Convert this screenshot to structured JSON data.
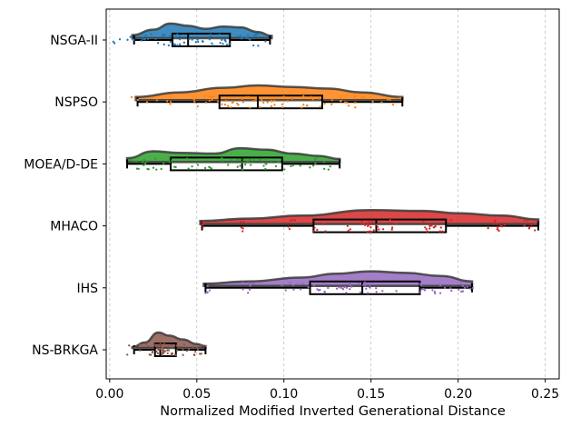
{
  "chart_data": {
    "type": "raincloud",
    "title": "",
    "xlabel": "Normalized Modified Inverted Generational Distance",
    "ylabel": "",
    "xlim": [
      -0.002,
      0.258
    ],
    "xticks": [
      0.0,
      0.05,
      0.1,
      0.15,
      0.2,
      0.25
    ],
    "xtick_labels": [
      "0.00",
      "0.05",
      "0.10",
      "0.15",
      "0.20",
      "0.25"
    ],
    "grid": "vertical dashed",
    "legend": "none",
    "series": [
      {
        "name": "NSGA-II",
        "color": "#1f77b4",
        "box": {
          "whisker_low": 0.014,
          "q1": 0.036,
          "median": 0.045,
          "q3": 0.069,
          "whisker_high": 0.092
        },
        "density": [
          [
            0.013,
            0.2
          ],
          [
            0.025,
            0.55
          ],
          [
            0.035,
            0.95
          ],
          [
            0.045,
            0.8
          ],
          [
            0.055,
            0.6
          ],
          [
            0.065,
            0.75
          ],
          [
            0.075,
            0.7
          ],
          [
            0.085,
            0.4
          ],
          [
            0.093,
            0.15
          ]
        ],
        "clusters": [
          [
            0.018,
            0.012,
            12
          ],
          [
            0.038,
            0.006,
            20
          ],
          [
            0.05,
            0.01,
            12
          ],
          [
            0.07,
            0.008,
            16
          ],
          [
            0.086,
            0.004,
            8
          ]
        ]
      },
      {
        "name": "NSPSO",
        "color": "#ff7f0e",
        "box": {
          "whisker_low": 0.016,
          "q1": 0.063,
          "median": 0.085,
          "q3": 0.122,
          "whisker_high": 0.168
        },
        "density": [
          [
            0.015,
            0.2
          ],
          [
            0.04,
            0.5
          ],
          [
            0.065,
            0.8
          ],
          [
            0.085,
            0.95
          ],
          [
            0.105,
            0.85
          ],
          [
            0.125,
            0.75
          ],
          [
            0.145,
            0.5
          ],
          [
            0.168,
            0.2
          ]
        ],
        "clusters": [
          [
            0.035,
            0.012,
            10
          ],
          [
            0.068,
            0.01,
            18
          ],
          [
            0.088,
            0.008,
            18
          ],
          [
            0.115,
            0.01,
            14
          ],
          [
            0.135,
            0.006,
            12
          ],
          [
            0.16,
            0.005,
            6
          ]
        ]
      },
      {
        "name": "MOEA/D-DE",
        "color": "#2ca02c",
        "box": {
          "whisker_low": 0.01,
          "q1": 0.035,
          "median": 0.076,
          "q3": 0.099,
          "whisker_high": 0.132
        },
        "density": [
          [
            0.01,
            0.25
          ],
          [
            0.025,
            0.7
          ],
          [
            0.04,
            0.6
          ],
          [
            0.06,
            0.55
          ],
          [
            0.075,
            0.9
          ],
          [
            0.09,
            0.8
          ],
          [
            0.105,
            0.55
          ],
          [
            0.12,
            0.4
          ],
          [
            0.132,
            0.2
          ]
        ],
        "clusters": [
          [
            0.022,
            0.006,
            20
          ],
          [
            0.045,
            0.006,
            8
          ],
          [
            0.07,
            0.008,
            16
          ],
          [
            0.088,
            0.008,
            16
          ],
          [
            0.115,
            0.008,
            12
          ]
        ]
      },
      {
        "name": "MHACO",
        "color": "#d62728",
        "box": {
          "whisker_low": 0.053,
          "q1": 0.117,
          "median": 0.153,
          "q3": 0.193,
          "whisker_high": 0.246
        },
        "density": [
          [
            0.052,
            0.2
          ],
          [
            0.08,
            0.35
          ],
          [
            0.11,
            0.55
          ],
          [
            0.15,
            0.9
          ],
          [
            0.18,
            0.85
          ],
          [
            0.2,
            0.7
          ],
          [
            0.225,
            0.55
          ],
          [
            0.246,
            0.3
          ]
        ],
        "clusters": [
          [
            0.054,
            0.001,
            5
          ],
          [
            0.077,
            0.001,
            5
          ],
          [
            0.104,
            0.001,
            5
          ],
          [
            0.122,
            0.003,
            5
          ],
          [
            0.153,
            0.008,
            26
          ],
          [
            0.188,
            0.004,
            16
          ],
          [
            0.222,
            0.003,
            12
          ],
          [
            0.242,
            0.003,
            8
          ]
        ]
      },
      {
        "name": "IHS",
        "color": "#9467bd",
        "box": {
          "whisker_low": 0.055,
          "q1": 0.115,
          "median": 0.145,
          "q3": 0.178,
          "whisker_high": 0.208
        },
        "density": [
          [
            0.054,
            0.15
          ],
          [
            0.08,
            0.3
          ],
          [
            0.11,
            0.55
          ],
          [
            0.13,
            0.8
          ],
          [
            0.15,
            0.95
          ],
          [
            0.17,
            0.85
          ],
          [
            0.19,
            0.65
          ],
          [
            0.208,
            0.3
          ]
        ],
        "clusters": [
          [
            0.056,
            0.001,
            5
          ],
          [
            0.079,
            0.002,
            8
          ],
          [
            0.105,
            0.003,
            8
          ],
          [
            0.125,
            0.005,
            12
          ],
          [
            0.148,
            0.008,
            22
          ],
          [
            0.188,
            0.006,
            16
          ],
          [
            0.203,
            0.003,
            8
          ]
        ]
      },
      {
        "name": "NS-BRKGA",
        "color": "#8c564b",
        "box": {
          "whisker_low": 0.014,
          "q1": 0.026,
          "median": 0.029,
          "q3": 0.038,
          "whisker_high": 0.055
        },
        "density": [
          [
            0.013,
            0.05
          ],
          [
            0.02,
            0.35
          ],
          [
            0.028,
            1.0
          ],
          [
            0.034,
            0.8
          ],
          [
            0.042,
            0.55
          ],
          [
            0.05,
            0.25
          ],
          [
            0.055,
            0.12
          ]
        ],
        "clusters": [
          [
            0.02,
            0.005,
            10
          ],
          [
            0.029,
            0.004,
            30
          ],
          [
            0.04,
            0.005,
            16
          ],
          [
            0.05,
            0.004,
            8
          ]
        ]
      }
    ]
  }
}
